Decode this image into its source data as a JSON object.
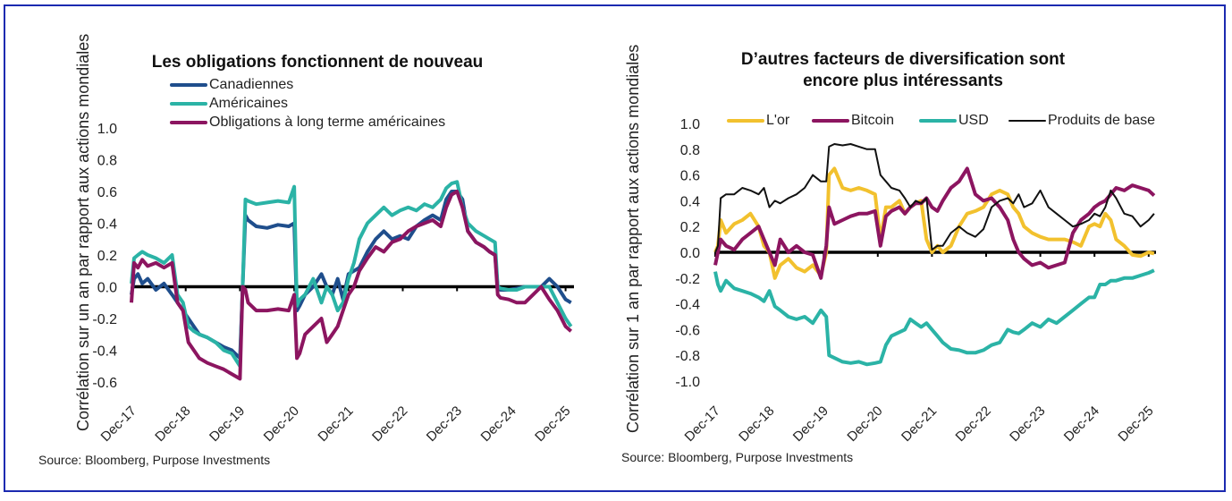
{
  "chart_data": [
    {
      "type": "line",
      "title": "Les obligations fonctionnent de nouveau",
      "xlabel": "",
      "ylabel": "Corrélation sur un an par rapport aux actions mondiales",
      "ylim": [
        -0.6,
        1.0
      ],
      "yticks": [
        "1.0",
        "0.8",
        "0.6",
        "0.4",
        "0.2",
        "0.0",
        "-0.2",
        "-0.4",
        "-0.6"
      ],
      "ytick_values": [
        1.0,
        0.8,
        0.6,
        0.4,
        0.2,
        0.0,
        -0.2,
        -0.4,
        -0.6
      ],
      "xticks": [
        "Dec-17",
        "Dec-18",
        "Dec-19",
        "Dec-20",
        "Dec-21",
        "Dec-22",
        "Dec-23",
        "Dec-24",
        "Dec-25"
      ],
      "xlim": [
        0,
        8.15
      ],
      "legend_position": "top-left",
      "grid": false,
      "source": "Source: Bloomberg, Purpose Investments",
      "series": [
        {
          "name": "Canadiennes",
          "color": "#1f4e8c",
          "x": [
            0,
            0.05,
            0.12,
            0.2,
            0.3,
            0.45,
            0.6,
            0.75,
            0.85,
            0.95,
            1.05,
            1.15,
            1.25,
            1.4,
            1.55,
            1.7,
            1.85,
            2.0,
            2.05,
            2.1,
            2.15,
            2.3,
            2.5,
            2.7,
            2.9,
            3.0,
            3.05,
            3.1,
            3.2,
            3.35,
            3.5,
            3.6,
            3.7,
            3.8,
            3.9,
            4.0,
            4.1,
            4.2,
            4.35,
            4.5,
            4.65,
            4.8,
            4.95,
            5.1,
            5.25,
            5.4,
            5.55,
            5.7,
            5.8,
            5.9,
            6.0,
            6.1,
            6.2,
            6.35,
            6.5,
            6.6,
            6.7,
            6.75,
            6.8,
            6.95,
            7.1,
            7.25,
            7.4,
            7.55,
            7.7,
            7.85,
            8.0,
            8.1
          ],
          "values": [
            -0.05,
            0.05,
            0.08,
            0.02,
            0.05,
            -0.02,
            0.02,
            -0.05,
            -0.1,
            -0.15,
            -0.2,
            -0.25,
            -0.3,
            -0.32,
            -0.35,
            -0.38,
            -0.4,
            -0.45,
            0.0,
            0.45,
            0.42,
            0.38,
            0.37,
            0.39,
            0.38,
            0.4,
            -0.15,
            -0.12,
            -0.05,
            0.0,
            0.08,
            0.0,
            -0.05,
            0.05,
            -0.08,
            0.08,
            0.1,
            0.12,
            0.22,
            0.3,
            0.35,
            0.3,
            0.32,
            0.3,
            0.38,
            0.42,
            0.45,
            0.42,
            0.55,
            0.6,
            0.6,
            0.55,
            0.35,
            0.28,
            0.25,
            0.22,
            0.2,
            0.0,
            -0.02,
            -0.02,
            -0.01,
            0.0,
            0.0,
            0.0,
            0.05,
            0.0,
            -0.08,
            -0.1
          ]
        },
        {
          "name": "Américaines",
          "color": "#2bb3a6",
          "x": [
            0,
            0.05,
            0.12,
            0.2,
            0.3,
            0.45,
            0.6,
            0.75,
            0.85,
            0.95,
            1.05,
            1.15,
            1.25,
            1.4,
            1.55,
            1.7,
            1.85,
            2.0,
            2.05,
            2.1,
            2.15,
            2.3,
            2.5,
            2.7,
            2.9,
            3.0,
            3.05,
            3.1,
            3.2,
            3.35,
            3.5,
            3.6,
            3.7,
            3.8,
            3.9,
            4.0,
            4.1,
            4.2,
            4.35,
            4.5,
            4.65,
            4.8,
            4.95,
            5.1,
            5.25,
            5.4,
            5.55,
            5.7,
            5.8,
            5.9,
            6.0,
            6.1,
            6.2,
            6.35,
            6.5,
            6.6,
            6.7,
            6.75,
            6.8,
            6.95,
            7.1,
            7.25,
            7.4,
            7.55,
            7.7,
            7.85,
            8.0,
            8.1
          ],
          "values": [
            0.02,
            0.18,
            0.2,
            0.22,
            0.2,
            0.18,
            0.15,
            0.2,
            -0.05,
            -0.1,
            -0.25,
            -0.28,
            -0.3,
            -0.32,
            -0.35,
            -0.4,
            -0.42,
            -0.5,
            0.0,
            0.55,
            0.54,
            0.52,
            0.53,
            0.54,
            0.53,
            0.63,
            -0.12,
            -0.08,
            -0.05,
            0.05,
            -0.1,
            0.0,
            -0.05,
            -0.15,
            -0.1,
            0.05,
            0.15,
            0.3,
            0.4,
            0.45,
            0.5,
            0.45,
            0.48,
            0.5,
            0.48,
            0.52,
            0.5,
            0.55,
            0.62,
            0.65,
            0.66,
            0.5,
            0.4,
            0.35,
            0.32,
            0.3,
            0.28,
            0.0,
            -0.01,
            -0.02,
            -0.02,
            0.0,
            0.0,
            0.0,
            0.0,
            -0.1,
            -0.2,
            -0.25
          ]
        },
        {
          "name": "Obligations à long terme américaines",
          "color": "#8c1560",
          "x": [
            0,
            0.05,
            0.12,
            0.2,
            0.3,
            0.45,
            0.6,
            0.75,
            0.85,
            0.95,
            1.05,
            1.15,
            1.25,
            1.4,
            1.55,
            1.7,
            1.85,
            2.0,
            2.05,
            2.1,
            2.15,
            2.3,
            2.5,
            2.7,
            2.9,
            3.0,
            3.05,
            3.1,
            3.2,
            3.35,
            3.5,
            3.6,
            3.7,
            3.8,
            3.9,
            4.0,
            4.1,
            4.2,
            4.35,
            4.5,
            4.65,
            4.8,
            4.95,
            5.1,
            5.25,
            5.4,
            5.55,
            5.7,
            5.8,
            5.9,
            6.0,
            6.1,
            6.2,
            6.35,
            6.5,
            6.6,
            6.7,
            6.75,
            6.8,
            6.95,
            7.1,
            7.25,
            7.4,
            7.55,
            7.7,
            7.85,
            8.0,
            8.1
          ],
          "values": [
            -0.1,
            0.15,
            0.12,
            0.17,
            0.13,
            0.15,
            0.12,
            0.15,
            -0.1,
            -0.15,
            -0.35,
            -0.4,
            -0.45,
            -0.48,
            -0.5,
            -0.52,
            -0.55,
            -0.58,
            0.0,
            -0.02,
            -0.1,
            -0.15,
            -0.15,
            -0.14,
            -0.15,
            -0.05,
            -0.45,
            -0.42,
            -0.3,
            -0.25,
            -0.2,
            -0.35,
            -0.3,
            -0.25,
            -0.15,
            -0.05,
            0.0,
            0.1,
            0.18,
            0.25,
            0.22,
            0.28,
            0.3,
            0.35,
            0.38,
            0.4,
            0.42,
            0.38,
            0.5,
            0.58,
            0.6,
            0.5,
            0.35,
            0.28,
            0.25,
            0.22,
            0.2,
            -0.05,
            -0.07,
            -0.08,
            -0.1,
            -0.1,
            -0.05,
            0.0,
            -0.08,
            -0.15,
            -0.25,
            -0.28
          ]
        }
      ]
    },
    {
      "type": "line",
      "title": "D’autres facteurs de diversification sont encore plus intéressants",
      "title_lines": [
        "D’autres facteurs de diversification sont",
        "encore plus intéressants"
      ],
      "xlabel": "",
      "ylabel": "Corrélation sur 1 an par rapport aux actions mondiales",
      "ylim": [
        -1.0,
        1.0
      ],
      "yticks": [
        "1.0",
        "0.8",
        "0.6",
        "0.4",
        "0.2",
        "0.0",
        "-0.2",
        "-0.4",
        "-0.6",
        "-0.8",
        "-1.0"
      ],
      "ytick_values": [
        1.0,
        0.8,
        0.6,
        0.4,
        0.2,
        0.0,
        -0.2,
        -0.4,
        -0.6,
        -0.8,
        -1.0
      ],
      "xticks": [
        "Dec-17",
        "Dec-18",
        "Dec-19",
        "Dec-20",
        "Dec-21",
        "Dec-22",
        "Dec-23",
        "Dec-24",
        "Dec-25"
      ],
      "xlim": [
        0,
        8.15
      ],
      "legend_position": "top",
      "grid": false,
      "source": "Source: Bloomberg, Purpose Investments",
      "series": [
        {
          "name": "L'or",
          "color": "#f2c12e",
          "x": [
            0,
            0.05,
            0.1,
            0.2,
            0.35,
            0.5,
            0.65,
            0.8,
            0.9,
            1.0,
            1.1,
            1.2,
            1.35,
            1.5,
            1.65,
            1.8,
            1.95,
            2.05,
            2.1,
            2.2,
            2.35,
            2.5,
            2.65,
            2.8,
            2.95,
            3.05,
            3.15,
            3.25,
            3.4,
            3.5,
            3.6,
            3.7,
            3.8,
            3.9,
            4.0,
            4.1,
            4.2,
            4.35,
            4.5,
            4.65,
            4.8,
            4.95,
            5.1,
            5.25,
            5.4,
            5.5,
            5.6,
            5.7,
            5.85,
            6.0,
            6.15,
            6.3,
            6.45,
            6.6,
            6.75,
            6.9,
            7.0,
            7.1,
            7.2,
            7.3,
            7.4,
            7.55,
            7.7,
            7.85,
            8.0,
            8.1
          ],
          "values": [
            0.0,
            0.05,
            0.25,
            0.15,
            0.22,
            0.25,
            0.3,
            0.2,
            0.05,
            0.0,
            -0.2,
            -0.1,
            -0.05,
            -0.12,
            -0.15,
            -0.1,
            -0.18,
            0.0,
            0.6,
            0.65,
            0.5,
            0.48,
            0.5,
            0.48,
            0.45,
            0.1,
            0.35,
            0.35,
            0.4,
            0.3,
            0.35,
            0.38,
            0.4,
            0.1,
            0.0,
            0.05,
            0.0,
            0.05,
            0.2,
            0.3,
            0.32,
            0.35,
            0.45,
            0.48,
            0.45,
            0.35,
            0.3,
            0.2,
            0.15,
            0.12,
            0.1,
            0.1,
            0.1,
            0.08,
            0.05,
            0.2,
            0.22,
            0.2,
            0.3,
            0.25,
            0.1,
            0.05,
            -0.02,
            -0.03,
            0.0,
            -0.01
          ]
        },
        {
          "name": "Bitcoin",
          "color": "#8c1560",
          "x": [
            0,
            0.05,
            0.1,
            0.2,
            0.35,
            0.5,
            0.65,
            0.8,
            0.9,
            1.0,
            1.1,
            1.2,
            1.35,
            1.5,
            1.65,
            1.8,
            1.95,
            2.05,
            2.1,
            2.2,
            2.35,
            2.5,
            2.65,
            2.8,
            2.95,
            3.05,
            3.15,
            3.25,
            3.4,
            3.5,
            3.6,
            3.7,
            3.8,
            3.9,
            4.0,
            4.1,
            4.2,
            4.35,
            4.5,
            4.65,
            4.8,
            4.95,
            5.1,
            5.25,
            5.4,
            5.5,
            5.6,
            5.7,
            5.85,
            6.0,
            6.15,
            6.3,
            6.45,
            6.6,
            6.75,
            6.9,
            7.0,
            7.1,
            7.2,
            7.3,
            7.4,
            7.55,
            7.7,
            7.85,
            8.0,
            8.1
          ],
          "values": [
            -0.1,
            0.0,
            0.1,
            0.05,
            0.02,
            0.1,
            0.15,
            0.2,
            0.1,
            0.0,
            -0.1,
            0.1,
            0.0,
            0.05,
            0.0,
            -0.02,
            -0.2,
            0.05,
            0.35,
            0.22,
            0.25,
            0.28,
            0.3,
            0.3,
            0.32,
            0.05,
            0.28,
            0.32,
            0.35,
            0.3,
            0.35,
            0.38,
            0.38,
            0.42,
            0.35,
            0.32,
            0.4,
            0.5,
            0.55,
            0.65,
            0.45,
            0.4,
            0.42,
            0.35,
            0.25,
            0.1,
            0.0,
            -0.05,
            -0.1,
            -0.08,
            -0.12,
            -0.1,
            -0.08,
            0.15,
            0.25,
            0.3,
            0.35,
            0.38,
            0.4,
            0.45,
            0.5,
            0.48,
            0.52,
            0.5,
            0.48,
            0.44
          ]
        },
        {
          "name": "USD",
          "color": "#2bb3a6",
          "x": [
            0,
            0.05,
            0.1,
            0.2,
            0.35,
            0.5,
            0.65,
            0.8,
            0.9,
            1.0,
            1.1,
            1.2,
            1.35,
            1.5,
            1.65,
            1.8,
            1.95,
            2.05,
            2.1,
            2.2,
            2.35,
            2.5,
            2.65,
            2.8,
            2.95,
            3.05,
            3.15,
            3.25,
            3.4,
            3.5,
            3.6,
            3.7,
            3.8,
            3.9,
            4.0,
            4.1,
            4.2,
            4.35,
            4.5,
            4.65,
            4.8,
            4.95,
            5.1,
            5.25,
            5.4,
            5.5,
            5.6,
            5.7,
            5.85,
            6.0,
            6.15,
            6.3,
            6.45,
            6.6,
            6.75,
            6.9,
            7.0,
            7.1,
            7.2,
            7.3,
            7.4,
            7.55,
            7.7,
            7.85,
            8.0,
            8.1
          ],
          "values": [
            -0.15,
            -0.25,
            -0.3,
            -0.22,
            -0.28,
            -0.3,
            -0.32,
            -0.35,
            -0.38,
            -0.3,
            -0.42,
            -0.45,
            -0.5,
            -0.52,
            -0.5,
            -0.55,
            -0.45,
            -0.5,
            -0.8,
            -0.82,
            -0.85,
            -0.86,
            -0.85,
            -0.87,
            -0.86,
            -0.85,
            -0.72,
            -0.65,
            -0.62,
            -0.6,
            -0.52,
            -0.55,
            -0.58,
            -0.55,
            -0.6,
            -0.65,
            -0.7,
            -0.75,
            -0.76,
            -0.78,
            -0.78,
            -0.76,
            -0.72,
            -0.7,
            -0.6,
            -0.62,
            -0.63,
            -0.6,
            -0.55,
            -0.58,
            -0.52,
            -0.55,
            -0.5,
            -0.45,
            -0.4,
            -0.35,
            -0.35,
            -0.25,
            -0.25,
            -0.22,
            -0.22,
            -0.2,
            -0.2,
            -0.18,
            -0.16,
            -0.14
          ]
        },
        {
          "name": "Produits de base",
          "color": "#111111",
          "x": [
            0,
            0.05,
            0.1,
            0.2,
            0.35,
            0.5,
            0.65,
            0.8,
            0.9,
            1.0,
            1.1,
            1.2,
            1.35,
            1.5,
            1.65,
            1.8,
            1.95,
            2.05,
            2.1,
            2.2,
            2.35,
            2.5,
            2.65,
            2.8,
            2.95,
            3.05,
            3.15,
            3.25,
            3.4,
            3.5,
            3.6,
            3.7,
            3.8,
            3.9,
            4.0,
            4.1,
            4.2,
            4.35,
            4.5,
            4.65,
            4.8,
            4.95,
            5.1,
            5.25,
            5.4,
            5.5,
            5.6,
            5.7,
            5.85,
            6.0,
            6.15,
            6.3,
            6.45,
            6.6,
            6.75,
            6.9,
            7.0,
            7.1,
            7.2,
            7.3,
            7.4,
            7.55,
            7.7,
            7.85,
            8.0,
            8.1
          ],
          "values": [
            0.0,
            0.05,
            0.42,
            0.45,
            0.45,
            0.5,
            0.48,
            0.45,
            0.5,
            0.35,
            0.4,
            0.38,
            0.42,
            0.45,
            0.5,
            0.6,
            0.55,
            0.55,
            0.82,
            0.84,
            0.83,
            0.84,
            0.82,
            0.8,
            0.8,
            0.6,
            0.55,
            0.5,
            0.48,
            0.42,
            0.35,
            0.4,
            0.38,
            0.42,
            0.02,
            0.05,
            0.05,
            0.15,
            0.2,
            0.15,
            0.12,
            0.18,
            0.35,
            0.4,
            0.42,
            0.38,
            0.45,
            0.35,
            0.38,
            0.48,
            0.35,
            0.3,
            0.25,
            0.2,
            0.22,
            0.25,
            0.3,
            0.28,
            0.35,
            0.48,
            0.42,
            0.3,
            0.28,
            0.2,
            0.25,
            0.3
          ]
        }
      ]
    }
  ]
}
